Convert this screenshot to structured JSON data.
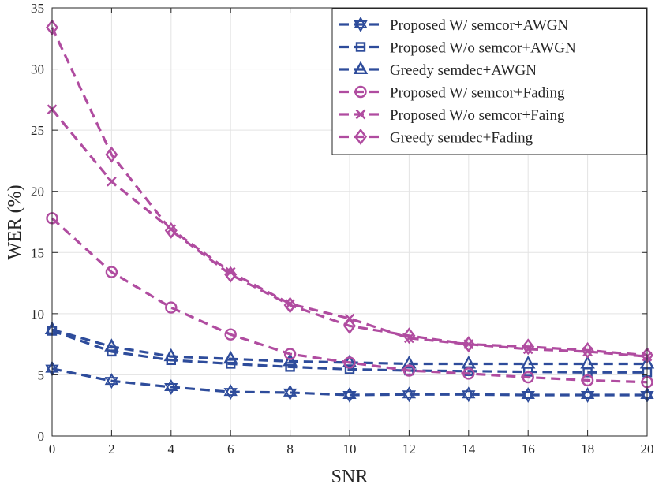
{
  "chart_data": {
    "type": "line",
    "xlabel": "SNR",
    "ylabel": "WER (%)",
    "xlim": [
      0,
      20
    ],
    "ylim": [
      0,
      35
    ],
    "xticks": [
      0,
      2,
      4,
      6,
      8,
      10,
      12,
      14,
      16,
      18,
      20
    ],
    "yticks": [
      0,
      5,
      10,
      15,
      20,
      25,
      30,
      35
    ],
    "grid": true,
    "legend_position": "top-right",
    "x": [
      0,
      2,
      4,
      6,
      8,
      10,
      12,
      14,
      16,
      18,
      20
    ],
    "series": [
      {
        "name": "Proposed W/ semcor+AWGN",
        "color": "#2e4c9b",
        "marker": "hexagram",
        "values": [
          5.5,
          4.5,
          4.0,
          3.6,
          3.55,
          3.35,
          3.4,
          3.4,
          3.35,
          3.35,
          3.35
        ]
      },
      {
        "name": "Proposed W/o semcor+AWGN",
        "color": "#2e4c9b",
        "marker": "square",
        "values": [
          8.6,
          6.9,
          6.2,
          5.9,
          5.65,
          5.45,
          5.35,
          5.3,
          5.25,
          5.2,
          5.2
        ]
      },
      {
        "name": "Greedy semdec+AWGN",
        "color": "#2e4c9b",
        "marker": "triangle",
        "values": [
          8.7,
          7.3,
          6.5,
          6.3,
          6.1,
          6.0,
          5.9,
          5.9,
          5.9,
          5.9,
          5.9
        ]
      },
      {
        "name": "Proposed W/ semcor+Fading",
        "color": "#b04ca0",
        "marker": "circle",
        "values": [
          17.8,
          13.4,
          10.5,
          8.3,
          6.7,
          6.0,
          5.35,
          5.1,
          4.8,
          4.55,
          4.4
        ]
      },
      {
        "name": "Proposed W/o semcor+Faing",
        "color": "#b04ca0",
        "marker": "x",
        "values": [
          26.7,
          20.8,
          16.9,
          13.4,
          10.8,
          9.6,
          8.0,
          7.5,
          7.1,
          6.9,
          6.5
        ]
      },
      {
        "name": "Greedy semdec+Fading",
        "color": "#b04ca0",
        "marker": "diamond",
        "values": [
          33.4,
          23.0,
          16.8,
          13.2,
          10.7,
          9.0,
          8.2,
          7.5,
          7.3,
          7.0,
          6.6
        ]
      }
    ]
  }
}
